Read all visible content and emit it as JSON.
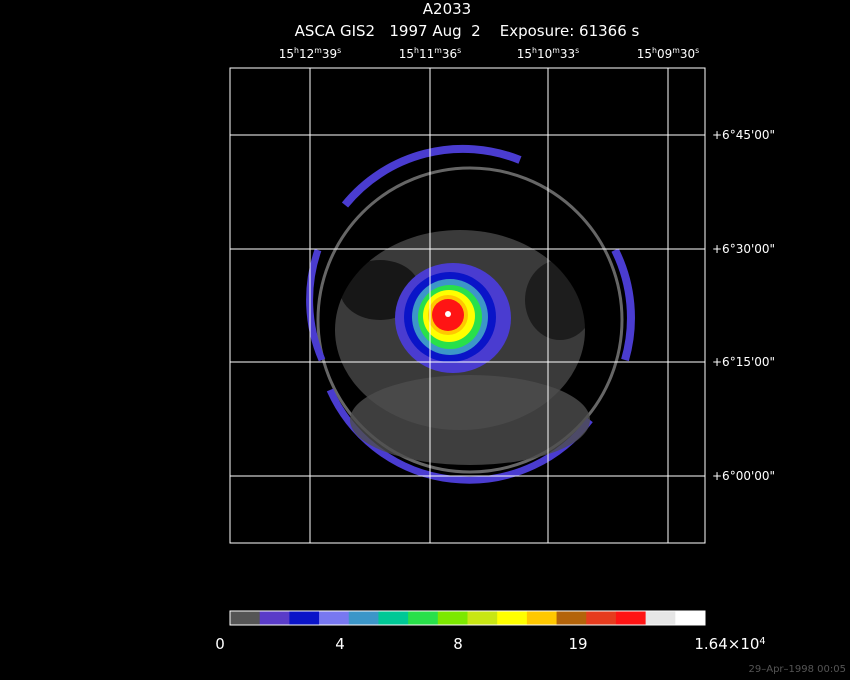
{
  "header": {
    "title": "A2033",
    "subtitle": "ASCA GIS2   1997 Aug  2    Exposure: 61366 s"
  },
  "ra_labels": [
    [
      "15",
      "h",
      "12",
      "m",
      "39",
      "s"
    ],
    [
      "15",
      "h",
      "11",
      "m",
      "36",
      "s"
    ],
    [
      "15",
      "h",
      "10",
      "m",
      "33",
      "s"
    ],
    [
      "15",
      "h",
      "09",
      "m",
      "30",
      "s"
    ]
  ],
  "dec_labels": [
    "+6°45'00\"",
    "+6°30'00\"",
    "+6°15'00\"",
    "+6°00'00\""
  ],
  "colorbar": {
    "colors": [
      "#555555",
      "#5a3cc8",
      "#0a14c8",
      "#7878f0",
      "#3c96c8",
      "#00c896",
      "#28e04a",
      "#7ce800",
      "#c8e614",
      "#ffff00",
      "#ffc800",
      "#b4640a",
      "#e63c1e",
      "#ff1414",
      "#e6e6e6",
      "#ffffff"
    ],
    "labels": [
      [
        "0"
      ],
      [
        "4"
      ],
      [
        "8"
      ],
      [
        "19"
      ],
      [
        "1.64×10",
        "4"
      ]
    ]
  },
  "footer": "29–Apr–1998 00:05"
}
